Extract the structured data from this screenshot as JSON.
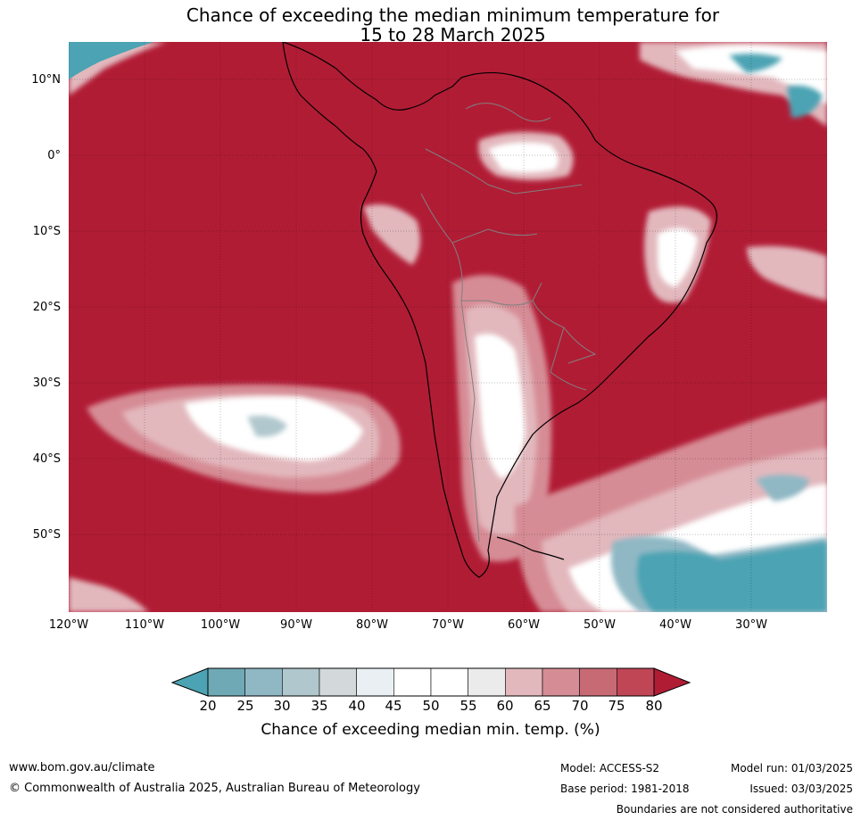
{
  "title": {
    "line1": "Chance of exceeding the median minimum temperature for",
    "line2": "15 to 28 March 2025"
  },
  "map": {
    "latitude_labels": [
      "10°N",
      "0°",
      "10°S",
      "20°S",
      "30°S",
      "40°S",
      "50°S"
    ],
    "longitude_labels": [
      "120°W",
      "110°W",
      "100°W",
      "90°W",
      "80°W",
      "70°W",
      "60°W",
      "50°W",
      "40°W",
      "30°W"
    ],
    "colors": {
      "high": "#b11c35",
      "ocean_base": "#b11c35",
      "low": "#4ba3b3",
      "neutral": "#ffffff",
      "coast": "#000000",
      "border": "#808080"
    }
  },
  "colorbar": {
    "ticks": [
      "20",
      "25",
      "30",
      "35",
      "40",
      "45",
      "50",
      "55",
      "60",
      "65",
      "70",
      "75",
      "80"
    ],
    "label": "Chance of exceeding median min. temp. (%)",
    "below_color": "#4ba3b3",
    "above_color": "#b11c35",
    "colors": [
      "#6fa9b5",
      "#8fb8c4",
      "#b0c8cd",
      "#d3d8da",
      "#e9eff2",
      "#ffffff",
      "#ffffff",
      "#ebebeb",
      "#e2b8bd",
      "#d68c95",
      "#c86a74",
      "#c04656"
    ]
  },
  "footer": {
    "url": "www.bom.gov.au/climate",
    "copyright": "© Commonwealth of Australia 2025, Australian Bureau of Meteorology",
    "model": "Model: ACCESS-S2",
    "base_period": "Base period: 1981-2018",
    "model_run": "Model run: 01/03/2025",
    "issued": "Issued: 03/03/2025",
    "boundaries": "Boundaries are not considered authoritative"
  }
}
